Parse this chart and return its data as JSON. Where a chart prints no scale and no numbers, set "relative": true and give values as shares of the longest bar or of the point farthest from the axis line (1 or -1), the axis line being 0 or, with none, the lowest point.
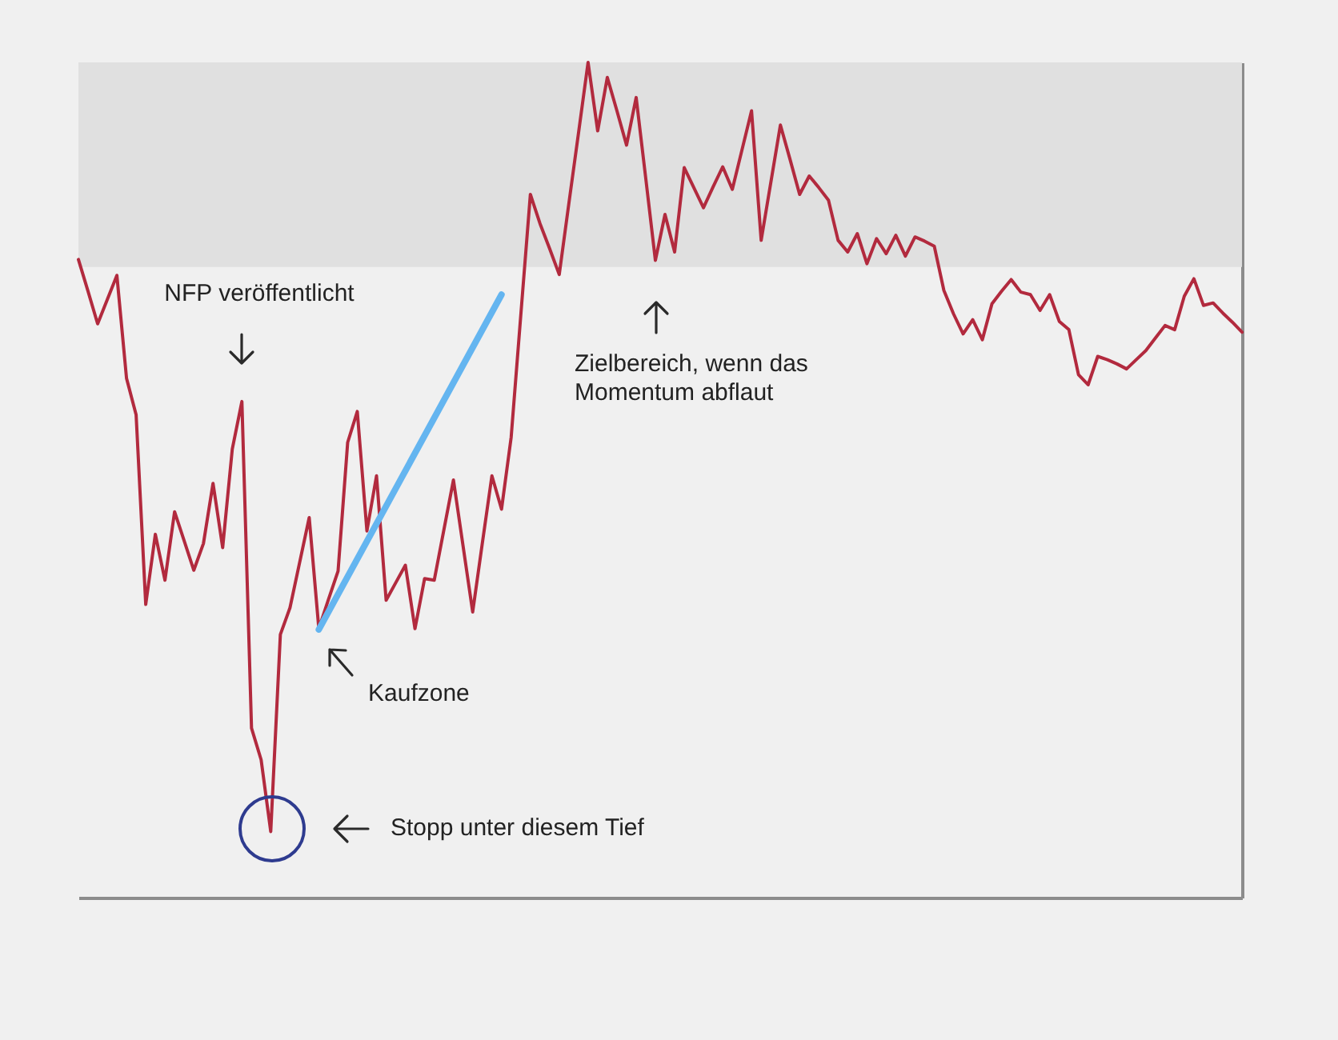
{
  "chart_data": {
    "type": "line",
    "relative": true,
    "categories": [
      null,
      null,
      null,
      null,
      null,
      null,
      null,
      null,
      null,
      null,
      null,
      null,
      null,
      null,
      null,
      null,
      null,
      null,
      null,
      null,
      null,
      null,
      null,
      null,
      null,
      null,
      null,
      null,
      null,
      null,
      null,
      null,
      null,
      null,
      null,
      null,
      null,
      null,
      null,
      null,
      null,
      null,
      null,
      null,
      null,
      null,
      null,
      null,
      null,
      null,
      null,
      null,
      null,
      null,
      null,
      null,
      null,
      null,
      null,
      null,
      null,
      null,
      null,
      null,
      null,
      null,
      null,
      null,
      null,
      null,
      null,
      null,
      null,
      null,
      null,
      null,
      null,
      null,
      null,
      null,
      null,
      null,
      null,
      null,
      null,
      null,
      null,
      null,
      null,
      null,
      null,
      null,
      null,
      null,
      null,
      null,
      null,
      null,
      null,
      null,
      null,
      null,
      null,
      null,
      null,
      null,
      null,
      null,
      null,
      null,
      null,
      null,
      null,
      null,
      null,
      null,
      null,
      null,
      null,
      null,
      null,
      null
    ],
    "series": [
      {
        "color": "#b22a3e",
        "values": [
          0.764,
          0.726,
          0.687,
          0.716,
          0.745,
          0.622,
          0.578,
          0.351,
          0.435,
          0.38,
          0.462,
          0.427,
          0.392,
          0.424,
          0.496,
          0.419,
          0.537,
          0.594,
          0.203,
          0.165,
          0.079,
          0.315,
          0.347,
          0.401,
          0.455,
          0.322,
          0.357,
          0.391,
          0.545,
          0.582,
          0.439,
          0.505,
          0.356,
          0.377,
          0.398,
          0.322,
          0.382,
          0.38,
          0.44,
          0.5,
          0.421,
          0.342,
          0.424,
          0.505,
          0.465,
          0.551,
          0.697,
          0.842,
          0.807,
          0.777,
          0.746,
          0.831,
          0.915,
          1.0,
          0.918,
          0.982,
          0.942,
          0.901,
          0.958,
          0.861,
          0.763,
          0.818,
          0.773,
          0.874,
          0.85,
          0.826,
          0.851,
          0.875,
          0.848,
          0.895,
          0.942,
          0.787,
          0.856,
          0.925,
          0.884,
          0.842,
          0.864,
          0.85,
          0.835,
          0.787,
          0.773,
          0.795,
          0.759,
          0.789,
          0.771,
          0.793,
          0.768,
          0.791,
          0.786,
          0.78,
          0.727,
          0.699,
          0.675,
          0.692,
          0.668,
          0.711,
          0.726,
          0.74,
          0.725,
          0.722,
          0.703,
          0.722,
          0.69,
          0.68,
          0.626,
          0.614,
          0.648,
          0.644,
          0.639,
          0.633,
          0.644,
          0.655,
          0.67,
          0.685,
          0.68,
          0.72,
          0.741,
          0.709,
          0.712,
          0.7,
          0.689,
          0.677
        ]
      },
      {
        "color": "#64b5f0",
        "values": [
          null,
          null,
          null,
          null,
          null,
          null,
          null,
          null,
          null,
          null,
          null,
          null,
          null,
          null,
          null,
          null,
          null,
          null,
          null,
          null,
          null,
          null,
          null,
          null,
          null,
          0.321,
          null,
          null,
          null,
          null,
          null,
          null,
          null,
          null,
          null,
          null,
          null,
          null,
          null,
          null,
          null,
          null,
          null,
          null,
          0.722,
          null,
          null,
          null,
          null,
          null,
          null,
          null,
          null,
          null,
          null,
          null,
          null,
          null,
          null,
          null,
          null,
          null,
          null,
          null,
          null,
          null,
          null,
          null,
          null,
          null,
          null,
          null,
          null,
          null,
          null,
          null,
          null,
          null,
          null,
          null,
          null,
          null,
          null,
          null,
          null,
          null,
          null,
          null,
          null,
          null,
          null,
          null,
          null,
          null,
          null,
          null,
          null,
          null,
          null,
          null,
          null,
          null,
          null,
          null,
          null,
          null,
          null,
          null,
          null,
          null,
          null,
          null,
          null,
          null,
          null,
          null,
          null,
          null,
          null,
          null,
          null,
          null
        ]
      }
    ],
    "bands": [
      {
        "axis": "y",
        "from": 0.755,
        "to": 1.0,
        "color": "#e0e0e0"
      }
    ],
    "annotations": [
      "NFP veröffentlicht",
      "Zielbereich, wenn das Momentum abflaut",
      "Kaufzone",
      "Stopp unter diesem Tief"
    ]
  }
}
